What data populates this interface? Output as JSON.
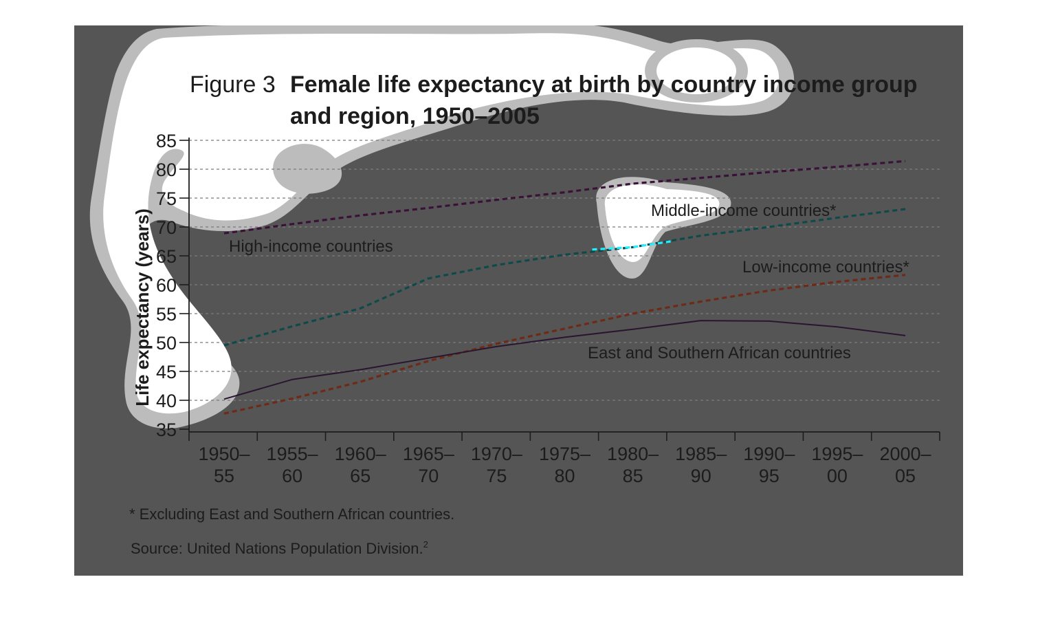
{
  "figure": {
    "number": "Figure 3",
    "title_line1": "Female life expectancy at birth by country income group",
    "title_line2": "and region, 1950–2005"
  },
  "footnote": "* Excluding East and Southern African countries.",
  "source": "Source: United Nations Population Division.",
  "source_sup": "2",
  "colors": {
    "background": "#555555",
    "text": "#1c1c1c",
    "high_income": "#3a1238",
    "middle_income": "#0f4a4a",
    "middle_income_highlight": "#1ff0ff",
    "low_income": "#6e2a16",
    "east_southern_africa": "#2a1530",
    "blob_fill": "#ffffff",
    "blob_halo": "#bcbcbc"
  },
  "chart_data": {
    "type": "line",
    "ylabel": "Life expectancy (years)",
    "xlabel": "",
    "ylim": [
      35,
      85
    ],
    "yticks": [
      35,
      40,
      45,
      50,
      55,
      60,
      65,
      70,
      75,
      80,
      85
    ],
    "grid": true,
    "categories": [
      {
        "line1": "1950–",
        "line2": "55"
      },
      {
        "line1": "1955–",
        "line2": "60"
      },
      {
        "line1": "1960–",
        "line2": "65"
      },
      {
        "line1": "1965–",
        "line2": "70"
      },
      {
        "line1": "1970–",
        "line2": "75"
      },
      {
        "line1": "1975–",
        "line2": "80"
      },
      {
        "line1": "1980–",
        "line2": "85"
      },
      {
        "line1": "1985–",
        "line2": "90"
      },
      {
        "line1": "1990–",
        "line2": "95"
      },
      {
        "line1": "1995–",
        "line2": "00"
      },
      {
        "line1": "2000–",
        "line2": "05"
      }
    ],
    "series": [
      {
        "name": "High-income countries",
        "style": "dashed",
        "color_key": "high_income",
        "values": [
          68.9,
          70.5,
          72.0,
          73.3,
          74.7,
          76.0,
          77.5,
          78.5,
          79.5,
          80.4,
          81.4
        ]
      },
      {
        "name": "Middle-income countries*",
        "style": "dashed",
        "color_key": "middle_income",
        "values": [
          49.5,
          52.8,
          55.9,
          61.1,
          63.4,
          65.2,
          66.5,
          68.5,
          70.0,
          71.6,
          73.1
        ]
      },
      {
        "name": "Low-income countries*",
        "style": "dashed",
        "color_key": "low_income",
        "values": [
          37.7,
          40.3,
          43.2,
          46.8,
          49.8,
          52.4,
          55.0,
          57.1,
          59.0,
          60.5,
          61.7
        ]
      },
      {
        "name": "East and Southern African countries",
        "style": "solid",
        "color_key": "east_southern_africa",
        "values": [
          40.2,
          43.6,
          45.3,
          47.3,
          49.3,
          50.9,
          52.3,
          53.8,
          53.7,
          52.7,
          51.2
        ]
      }
    ]
  }
}
